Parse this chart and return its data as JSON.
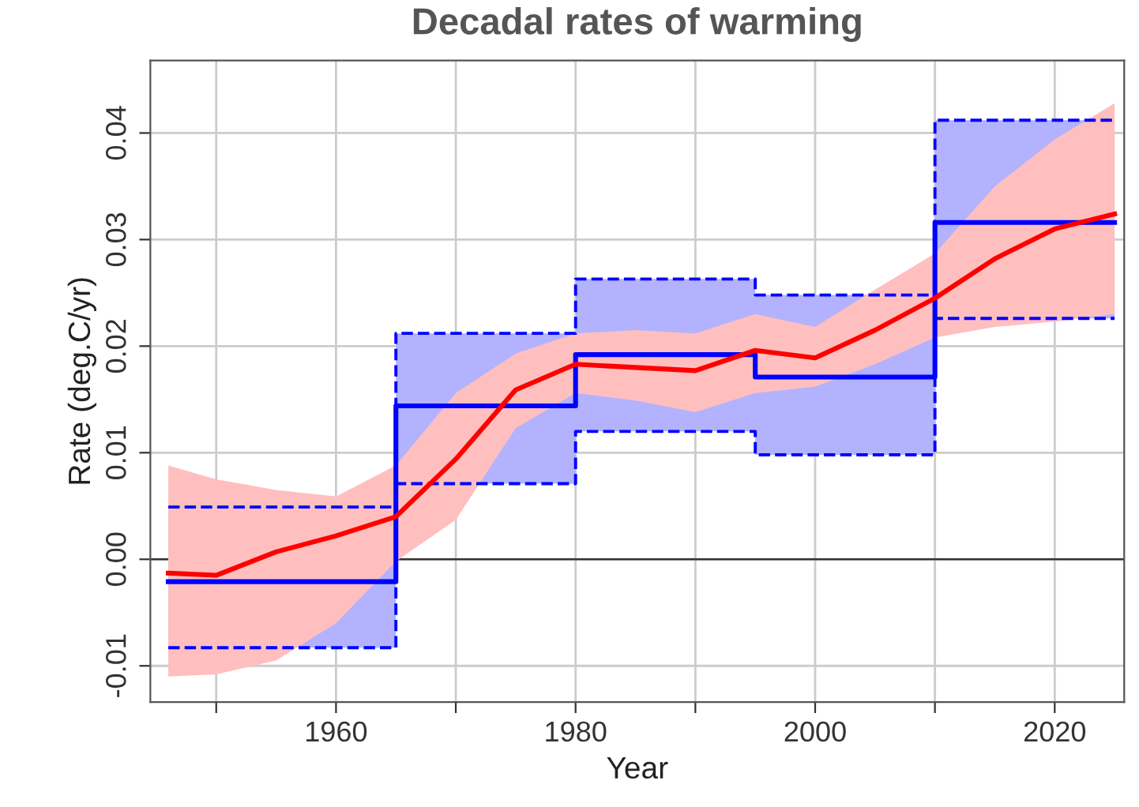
{
  "chart_data": {
    "type": "line",
    "title": "Decadal rates of warming",
    "xlabel": "Year",
    "ylabel": "Rate (deg.C/yr)",
    "xlim": [
      1944.5,
      2025.8
    ],
    "ylim": [
      -0.0134,
      0.0468
    ],
    "xticks": [
      {
        "value": 1950,
        "label": null
      },
      1960,
      {
        "value": 1970,
        "label": null
      },
      1980,
      {
        "value": 1990,
        "label": null
      },
      2000,
      {
        "value": 2010,
        "label": null
      },
      2020
    ],
    "yticks": [
      {
        "value": -0.01,
        "label": "-0.01"
      },
      {
        "value": 0.0,
        "label": "0.00"
      },
      {
        "value": 0.01,
        "label": "0.01"
      },
      {
        "value": 0.02,
        "label": "0.02"
      },
      {
        "value": 0.03,
        "label": "0.03"
      },
      {
        "value": 0.04,
        "label": "0.04"
      }
    ],
    "grid": true,
    "ref_lines": [
      {
        "axis": "y",
        "value": 0,
        "color": "#333333"
      }
    ],
    "series": [
      {
        "type": "step",
        "color": "#0000ff",
        "line_style": "solid",
        "x": [
          1946,
          1965,
          1980,
          1995,
          2010,
          2025
        ],
        "values": [
          -0.0021,
          0.0144,
          0.0192,
          0.0171,
          0.0316,
          0.0316
        ],
        "lower": [
          -0.0083,
          0.0071,
          0.012,
          0.0098,
          0.0226,
          0.0226
        ],
        "upper": [
          0.0049,
          0.0212,
          0.0263,
          0.0248,
          0.0412,
          0.0412
        ]
      },
      {
        "type": "step",
        "color": "#0000ff",
        "line_style": "dashed",
        "x": [
          1946,
          1965,
          1980,
          1995,
          2010,
          2025
        ],
        "values": [
          -0.0083,
          0.0071,
          0.012,
          0.0098,
          0.0226,
          0.0226
        ]
      },
      {
        "type": "step",
        "color": "#0000ff",
        "line_style": "dashed",
        "x": [
          1946,
          1965,
          1980,
          1995,
          2010,
          2025
        ],
        "values": [
          0.0049,
          0.0212,
          0.0263,
          0.0248,
          0.0412,
          0.0412
        ]
      },
      {
        "color": "#ff0000",
        "line_style": "solid",
        "x": [
          1946,
          1950,
          1955,
          1960,
          1965,
          1970,
          1975,
          1980,
          1985,
          1990,
          1995,
          2000,
          2005,
          2010,
          2015,
          2020,
          2025
        ],
        "values": [
          -0.0013,
          -0.0015,
          0.0007,
          0.0022,
          0.004,
          0.0094,
          0.0159,
          0.0183,
          0.018,
          0.0177,
          0.0196,
          0.0189,
          0.0215,
          0.0245,
          0.0282,
          0.031,
          0.0324
        ],
        "lower": [
          -0.011,
          -0.0108,
          -0.0095,
          -0.006,
          -0.0002,
          0.0037,
          0.0123,
          0.0156,
          0.0149,
          0.0138,
          0.0156,
          0.0162,
          0.0183,
          0.0208,
          0.0218,
          0.0223,
          0.023
        ],
        "upper": [
          0.0088,
          0.0075,
          0.0065,
          0.0059,
          0.0088,
          0.0156,
          0.0193,
          0.0212,
          0.0215,
          0.0212,
          0.023,
          0.0218,
          0.0253,
          0.0287,
          0.035,
          0.0394,
          0.0428
        ]
      }
    ]
  }
}
